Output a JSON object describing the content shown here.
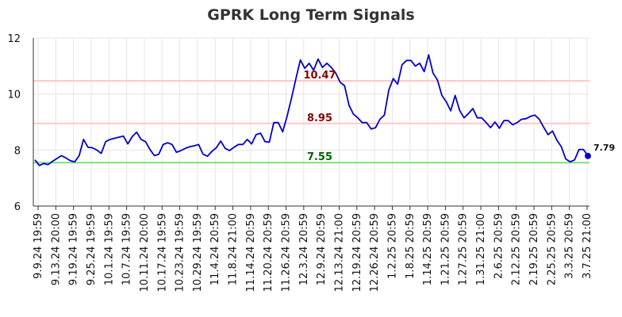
{
  "chart_data": {
    "type": "line",
    "title": "GPRK Long Term Signals",
    "xlabel": "",
    "ylabel": "",
    "ylim": [
      6,
      12
    ],
    "yticks": [
      6,
      8,
      10,
      12
    ],
    "grid": true,
    "x_tick_labels": [
      "9.9.24 19:59",
      "9.13.24 20:00",
      "9.19.24 19:59",
      "9.25.24 19:59",
      "10.1.24 19:59",
      "10.7.24 19:59",
      "10.11.24 20:00",
      "10.17.24 19:59",
      "10.23.24 19:59",
      "10.29.24 19:59",
      "11.4.24 20:59",
      "11.8.24 21:00",
      "11.14.24 20:59",
      "11.20.24 20:59",
      "11.26.24 20:59",
      "12.3.24 20:59",
      "12.9.24 20:59",
      "12.13.24 21:00",
      "12.19.24 20:59",
      "12.26.24 20:59",
      "1.2.25 20:59",
      "1.8.25 20:59",
      "1.14.25 20:59",
      "1.21.25 20:59",
      "1.27.25 20:59",
      "1.31.25 21:00",
      "2.6.25 20:59",
      "2.12.25 20:59",
      "2.19.25 20:59",
      "2.25.25 20:59",
      "3.3.25 20:59",
      "3.7.25 21:00"
    ],
    "levels": [
      {
        "value": 10.47,
        "label": "10.47",
        "line_color": "#ffc8c8",
        "label_color": "#8b0000"
      },
      {
        "value": 8.95,
        "label": "8.95",
        "line_color": "#ffc8c8",
        "label_color": "#8b0000"
      },
      {
        "value": 7.55,
        "label": "7.55",
        "line_color": "#7be07b",
        "label_color": "#006400"
      }
    ],
    "series": [
      {
        "color": "#0000cc",
        "values": [
          7.65,
          7.45,
          7.52,
          7.48,
          7.6,
          7.7,
          7.8,
          7.72,
          7.62,
          7.58,
          7.8,
          8.38,
          8.1,
          8.08,
          8.0,
          7.88,
          8.3,
          8.38,
          8.42,
          8.46,
          8.5,
          8.22,
          8.48,
          8.64,
          8.38,
          8.3,
          8.02,
          7.8,
          7.85,
          8.2,
          8.26,
          8.2,
          7.92,
          7.98,
          8.06,
          8.12,
          8.15,
          8.2,
          7.85,
          7.78,
          7.95,
          8.08,
          8.32,
          8.06,
          7.98,
          8.1,
          8.2,
          8.2,
          8.38,
          8.22,
          8.55,
          8.6,
          8.3,
          8.28,
          8.98,
          8.98,
          8.65,
          9.2,
          9.85,
          10.55,
          11.22,
          10.92,
          11.1,
          10.85,
          11.25,
          10.95,
          11.1,
          10.95,
          10.75,
          10.42,
          10.3,
          9.6,
          9.28,
          9.15,
          8.98,
          8.98,
          8.75,
          8.8,
          9.1,
          9.25,
          10.15,
          10.55,
          10.35,
          11.05,
          11.2,
          11.2,
          11.0,
          11.1,
          10.8,
          11.4,
          10.75,
          10.5,
          9.95,
          9.72,
          9.4,
          9.95,
          9.42,
          9.15,
          9.3,
          9.48,
          9.15,
          9.15,
          8.98,
          8.8,
          9.0,
          8.78,
          9.05,
          9.05,
          8.9,
          8.98,
          9.1,
          9.12,
          9.2,
          9.25,
          9.1,
          8.82,
          8.55,
          8.68,
          8.35,
          8.12,
          7.68,
          7.58,
          7.65,
          8.02,
          8.02,
          7.79
        ]
      }
    ],
    "last_value_label": "7.79"
  }
}
